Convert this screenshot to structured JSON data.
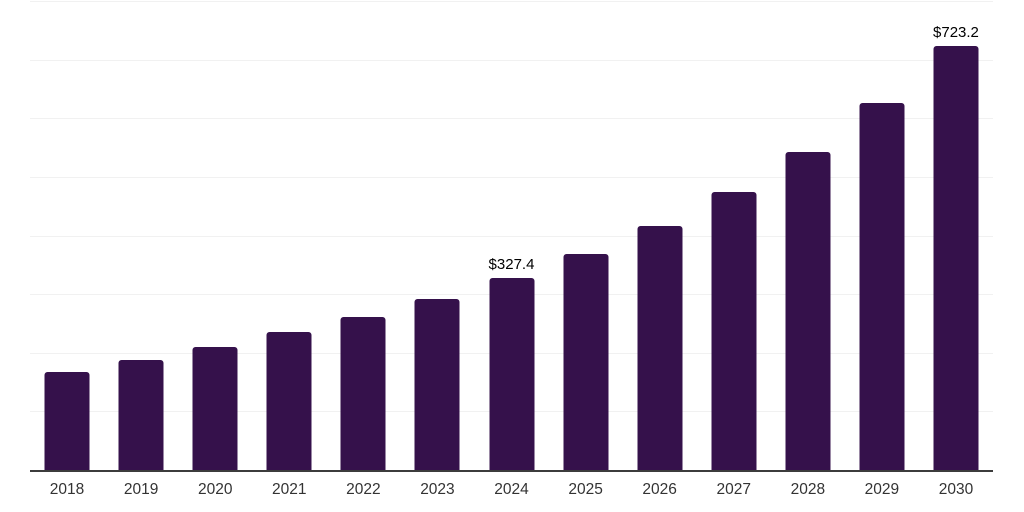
{
  "chart": {
    "background_color": "#ffffff",
    "bar_color": "#35114b",
    "grid_color": "#f1f1f1",
    "axis_color": "#3c3c3c",
    "value_label_color": "#000000",
    "tick_label_color": "#333333"
  },
  "chart_data": {
    "type": "bar",
    "title": "",
    "xlabel": "",
    "ylabel": "",
    "categories": [
      "2018",
      "2019",
      "2020",
      "2021",
      "2022",
      "2023",
      "2024",
      "2025",
      "2026",
      "2027",
      "2028",
      "2029",
      "2030"
    ],
    "values": [
      167.7,
      187.6,
      210.3,
      235.9,
      260.5,
      291.7,
      327.4,
      368.4,
      416.2,
      473.7,
      541.9,
      625.5,
      723.2
    ],
    "value_labels": [
      "",
      "",
      "",
      "",
      "",
      "",
      "$327.4",
      "",
      "",
      "",
      "",
      "",
      "$723.2"
    ],
    "ylim": [
      0,
      800
    ],
    "gridline_step": 100,
    "grid": true,
    "legend": false,
    "y_axis_ticks_visible": false
  }
}
